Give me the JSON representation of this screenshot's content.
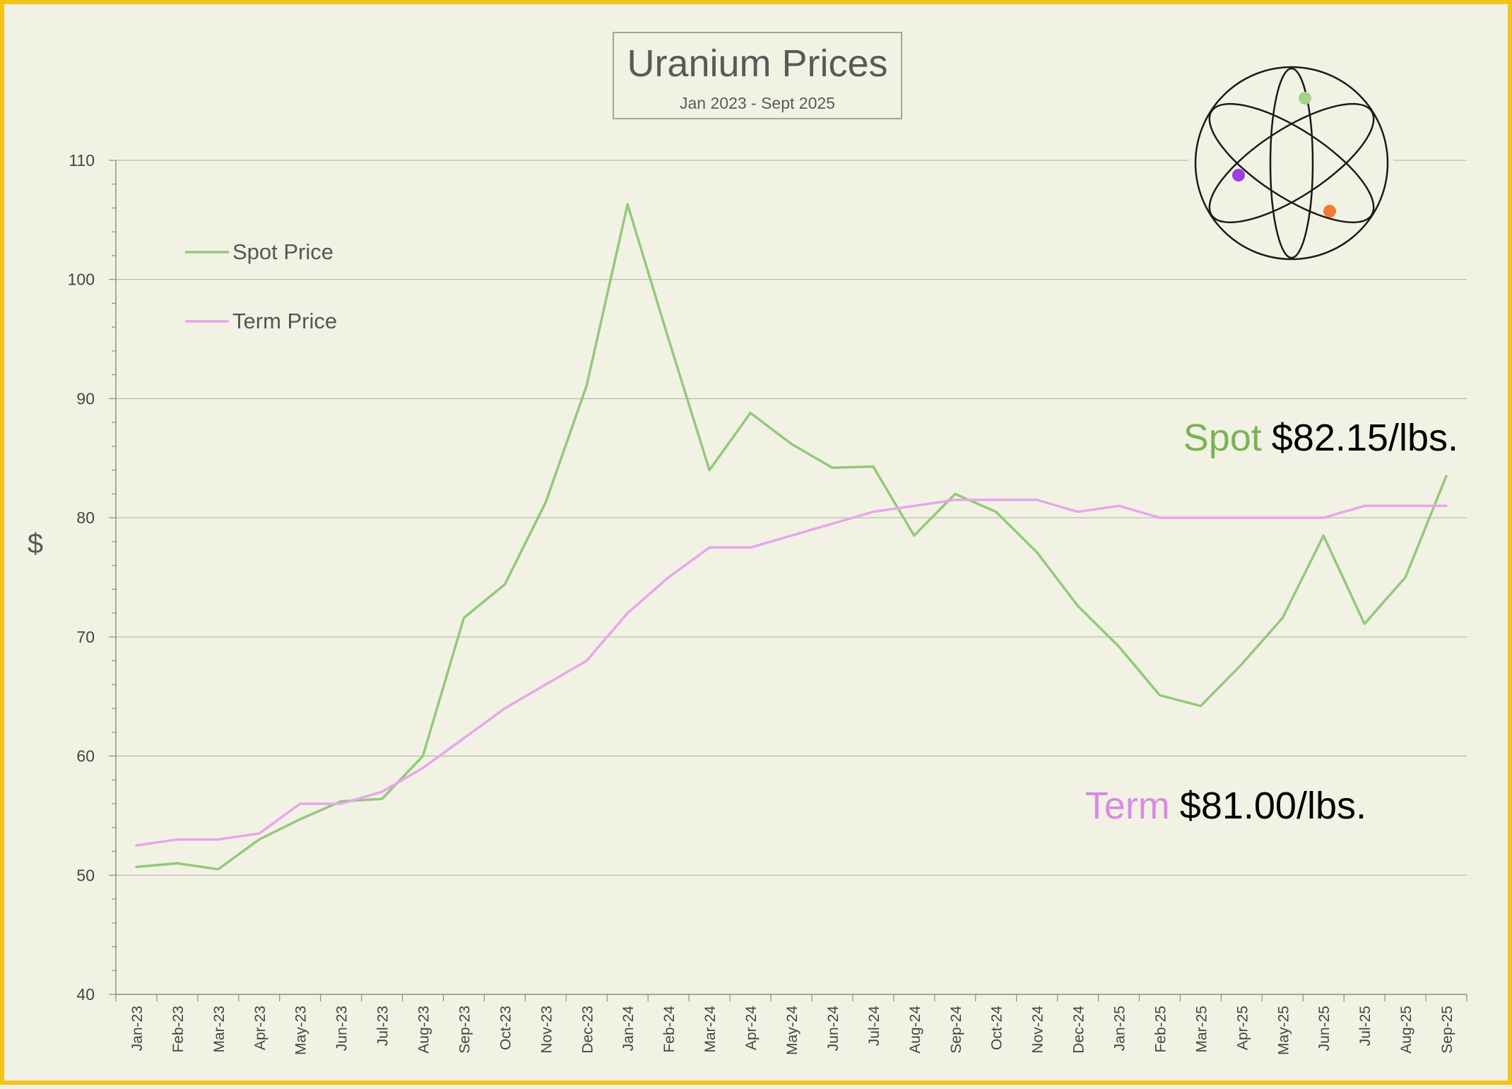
{
  "chart_data": {
    "type": "line",
    "title": "Uranium Prices",
    "subtitle": "Jan 2023 - Sept 2025",
    "ylabel": "$",
    "xlabel": "",
    "ylim": [
      40,
      110
    ],
    "yticks": [
      40,
      50,
      60,
      70,
      80,
      90,
      100,
      110
    ],
    "grid": true,
    "legend_position": "top-left",
    "categories": [
      "Jan-23",
      "Feb-23",
      "Mar-23",
      "Apr-23",
      "May-23",
      "Jun-23",
      "Jul-23",
      "Aug-23",
      "Sep-23",
      "Oct-23",
      "Nov-23",
      "Dec-23",
      "Jan-24",
      "Feb-24",
      "Mar-24",
      "Apr-24",
      "May-24",
      "Jun-24",
      "Jul-24",
      "Aug-24",
      "Sep-24",
      "Oct-24",
      "Nov-24",
      "Dec-24",
      "Jan-25",
      "Feb-25",
      "Mar-25",
      "Apr-25",
      "May-25",
      "Jun-25",
      "Jul-25",
      "Aug-25",
      "Sep-25"
    ],
    "series": [
      {
        "name": "Spot Price",
        "color": "#93c97a",
        "values": [
          50.7,
          51.0,
          50.5,
          53.0,
          54.7,
          56.2,
          56.4,
          60.0,
          71.6,
          74.4,
          81.3,
          91.1,
          106.3,
          95.0,
          84.0,
          88.8,
          86.2,
          84.2,
          84.3,
          78.5,
          82.0,
          80.5,
          77.1,
          72.6,
          69.2,
          65.1,
          64.2,
          67.7,
          71.6,
          78.5,
          71.1,
          75.0,
          83.5
        ]
      },
      {
        "name": "Term Price",
        "color": "#e8a6ec",
        "values": [
          52.5,
          53.0,
          53.0,
          53.5,
          56.0,
          56.0,
          57.0,
          59.0,
          61.5,
          64.0,
          66.0,
          68.0,
          72.0,
          75.0,
          77.5,
          77.5,
          78.5,
          79.5,
          80.5,
          81.0,
          81.5,
          81.5,
          81.5,
          80.5,
          81.0,
          80.0,
          80.0,
          80.0,
          80.0,
          80.0,
          81.0,
          81.0,
          81.0
        ]
      }
    ],
    "annotations": [
      {
        "label": "Spot",
        "value": "$82.15/lbs.",
        "label_color": "#7ab356"
      },
      {
        "label": "Term",
        "value": "$81.00/lbs.",
        "label_color": "#d98ae6"
      }
    ]
  },
  "logo": {
    "name": "atom-icon",
    "colors": [
      "#a8d08d",
      "#9a3fe0",
      "#ef7c30"
    ]
  },
  "colors": {
    "background": "#f2f2e4",
    "border": "#f3c31a",
    "grid": "#bdbdad",
    "axis_text": "#444444"
  }
}
